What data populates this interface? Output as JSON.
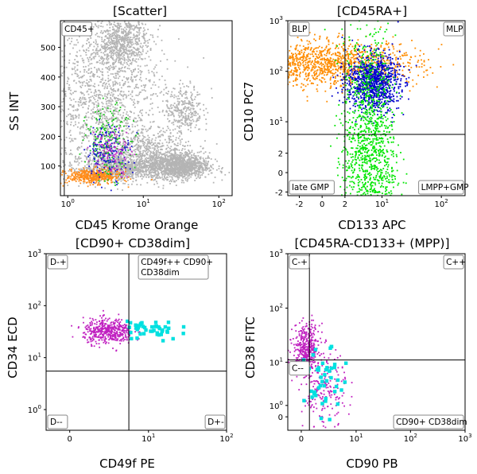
{
  "chart_data": [
    {
      "type": "scatter",
      "title": "[Scatter]",
      "xlabel": "CD45 Krome Orange",
      "ylabel": "SS INT",
      "x_scale": "log",
      "xlim": [
        0.8,
        150
      ],
      "ylim": [
        0,
        590
      ],
      "x_ticks": [
        {
          "v": 1,
          "b": "10",
          "e": "0"
        },
        {
          "v": 10,
          "b": "10",
          "e": "1"
        },
        {
          "v": 100,
          "b": "10",
          "e": "2"
        }
      ],
      "y_ticks": [
        {
          "v": 100,
          "t": "100"
        },
        {
          "v": 200,
          "t": "200"
        },
        {
          "v": 300,
          "t": "300"
        },
        {
          "v": 400,
          "t": "400"
        },
        {
          "v": 500,
          "t": "500"
        }
      ],
      "gate_lines": {
        "x": 0.9
      },
      "region_labels": [
        {
          "text": "CD45+",
          "corner": "top-left"
        }
      ],
      "series": [
        {
          "name": "",
          "color": "#b4b4b4",
          "clusters": [
            {
              "cx": 6,
              "cy": 95,
              "sx": 0.35,
              "sy": 22,
              "n": 900
            },
            {
              "cx": 3,
              "cy": 320,
              "sx": 0.4,
              "sy": 120,
              "n": 1300
            },
            {
              "cx": 5,
              "cy": 520,
              "sx": 0.18,
              "sy": 45,
              "n": 700
            },
            {
              "cx": 30,
              "cy": 100,
              "sx": 0.2,
              "sy": 22,
              "n": 1100
            },
            {
              "cx": 35,
              "cy": 290,
              "sx": 0.12,
              "sy": 40,
              "n": 300
            },
            {
              "cx": 12,
              "cy": 150,
              "sx": 0.3,
              "sy": 40,
              "n": 500
            }
          ]
        },
        {
          "name": "",
          "color": "#ff8c1a",
          "clusters": [
            {
              "cx": 2.2,
              "cy": 65,
              "sx": 0.18,
              "sy": 12,
              "n": 450
            }
          ]
        },
        {
          "name": "",
          "color": "#1ec81e",
          "clusters": [
            {
              "cx": 3.5,
              "cy": 180,
              "sx": 0.15,
              "sy": 60,
              "n": 200
            }
          ]
        },
        {
          "name": "",
          "color": "#1a1acd",
          "clusters": [
            {
              "cx": 3.5,
              "cy": 150,
              "sx": 0.15,
              "sy": 45,
              "n": 170
            }
          ]
        },
        {
          "name": "",
          "color": "#c832c8",
          "clusters": [
            {
              "cx": 3.8,
              "cy": 150,
              "sx": 0.13,
              "sy": 40,
              "n": 110
            }
          ]
        }
      ]
    },
    {
      "type": "scatter",
      "title": "[CD45RA+]",
      "xlabel": "CD133 APC",
      "ylabel": "CD10 PC7",
      "x_scale": "biexponential",
      "y_scale": "biexponential",
      "xlim": [
        -3.5,
        250
      ],
      "ylim": [
        -2.5,
        1000
      ],
      "x_ticks": [
        {
          "v": -2,
          "t": "-2"
        },
        {
          "v": 0,
          "t": "0"
        },
        {
          "v": 2,
          "t": "2"
        },
        {
          "v": 10,
          "b": "10",
          "e": "1"
        },
        {
          "v": 100,
          "b": "10",
          "e": "2"
        }
      ],
      "y_ticks": [
        {
          "v": -2,
          "t": "-2"
        },
        {
          "v": 0,
          "t": "0"
        },
        {
          "v": 2,
          "t": "2"
        },
        {
          "v": 10,
          "b": "10",
          "e": "1"
        },
        {
          "v": 100,
          "b": "10",
          "e": "2"
        },
        {
          "v": 1000,
          "b": "10",
          "e": "3"
        }
      ],
      "gate_lines": {
        "x": 2,
        "y": 5.5
      },
      "region_labels": [
        {
          "text": "BLP",
          "corner": "top-left"
        },
        {
          "text": "MLP",
          "corner": "top-right"
        },
        {
          "text": "late GMP",
          "corner": "bottom-left"
        },
        {
          "text": "LMPP+GMP",
          "corner": "bottom-right"
        }
      ],
      "series": [
        {
          "name": "",
          "color": "#ff8c00",
          "clusters": [
            {
              "cx": 0.1,
              "cy": 140,
              "sx": 0.8,
              "sy": 0.22,
              "n": 1300
            }
          ]
        },
        {
          "name": "",
          "color": "#0000cd",
          "clusters": [
            {
              "cx": 7,
              "cy": 60,
              "sx": 0.22,
              "sy": 0.28,
              "n": 1000
            }
          ]
        },
        {
          "name": "",
          "color": "#00e600",
          "clusters": [
            {
              "cx": 6,
              "cy": 1.5,
              "sx": 0.22,
              "sy": 1.2,
              "n": 1400
            }
          ]
        }
      ]
    },
    {
      "type": "scatter",
      "title": "[CD90+ CD38dim]",
      "xlabel": "CD49f PE",
      "ylabel": "CD34 ECD",
      "x_scale": "biexponential",
      "y_scale": "log",
      "xlim": [
        -1.5,
        100
      ],
      "ylim": [
        0.4,
        1000
      ],
      "x_ticks": [
        {
          "v": 0,
          "t": "0"
        },
        {
          "v": 10,
          "b": "10",
          "e": "1"
        },
        {
          "v": 100,
          "b": "10",
          "e": "2"
        }
      ],
      "y_ticks": [
        {
          "v": 1,
          "b": "10",
          "e": "0"
        },
        {
          "v": 10,
          "b": "10",
          "e": "1"
        },
        {
          "v": 100,
          "b": "10",
          "e": "2"
        },
        {
          "v": 1000,
          "b": "10",
          "e": "3"
        }
      ],
      "gate_lines": {
        "x": 5.5,
        "y": 5.5
      },
      "region_labels": [
        {
          "text": "D-+",
          "corner": "top-left"
        },
        {
          "text": "CD49f++ CD90+ CD38dim",
          "corner": "top-right-inner"
        },
        {
          "text": "D--",
          "corner": "bottom-left"
        },
        {
          "text": "D+-",
          "corner": "bottom-right"
        }
      ],
      "series": [
        {
          "name": "",
          "color": "#c020c0",
          "clusters": [
            {
              "cx": 2.8,
              "cy": 32,
              "sx": 0.16,
              "sy": 0.12,
              "n": 450
            }
          ]
        },
        {
          "name": "",
          "color": "#00e0e0",
          "clusters": [
            {
              "cx": 11,
              "cy": 35,
              "sx": 0.18,
              "sy": 0.12,
              "n": 45
            }
          ]
        }
      ]
    },
    {
      "type": "scatter",
      "title": "[CD45RA-CD133+ (MPP)]",
      "xlabel": "CD90 PB",
      "ylabel": "CD38 FITC",
      "x_scale": "biexponential",
      "y_scale": "biexponential",
      "xlim": [
        -1.2,
        1000
      ],
      "ylim": [
        -1.2,
        1000
      ],
      "x_ticks": [
        {
          "v": 0,
          "t": "0"
        },
        {
          "v": 10,
          "b": "10",
          "e": "1"
        },
        {
          "v": 100,
          "b": "10",
          "e": "2"
        },
        {
          "v": 1000,
          "b": "10",
          "e": "3"
        }
      ],
      "y_ticks": [
        {
          "v": 0,
          "t": "0"
        },
        {
          "v": 1,
          "b": "10",
          "e": "0"
        },
        {
          "v": 10,
          "b": "10",
          "e": "1"
        },
        {
          "v": 100,
          "b": "10",
          "e": "2"
        },
        {
          "v": 1000,
          "b": "10",
          "e": "3"
        }
      ],
      "gate_lines": {
        "x": 0.7,
        "y": 11
      },
      "region_labels": [
        {
          "text": "C-+",
          "corner": "top-left"
        },
        {
          "text": "C++",
          "corner": "top-right"
        },
        {
          "text": "C--",
          "corner": "mid-left"
        },
        {
          "text": "CD90+ CD38dim",
          "corner": "bottom-right"
        }
      ],
      "series": [
        {
          "name": "",
          "color": "#c020c0",
          "clusters": [
            {
              "cx": 0.45,
              "cy": 18,
              "sx": 0.12,
              "sy": 0.22,
              "n": 420
            },
            {
              "cx": 2.2,
              "cy": 2.5,
              "sx": 0.2,
              "sy": 0.35,
              "n": 200
            }
          ]
        },
        {
          "name": "",
          "color": "#00e0e0",
          "clusters": [
            {
              "cx": 2.3,
              "cy": 4,
              "sx": 0.18,
              "sy": 0.3,
              "n": 45
            }
          ]
        }
      ]
    }
  ]
}
